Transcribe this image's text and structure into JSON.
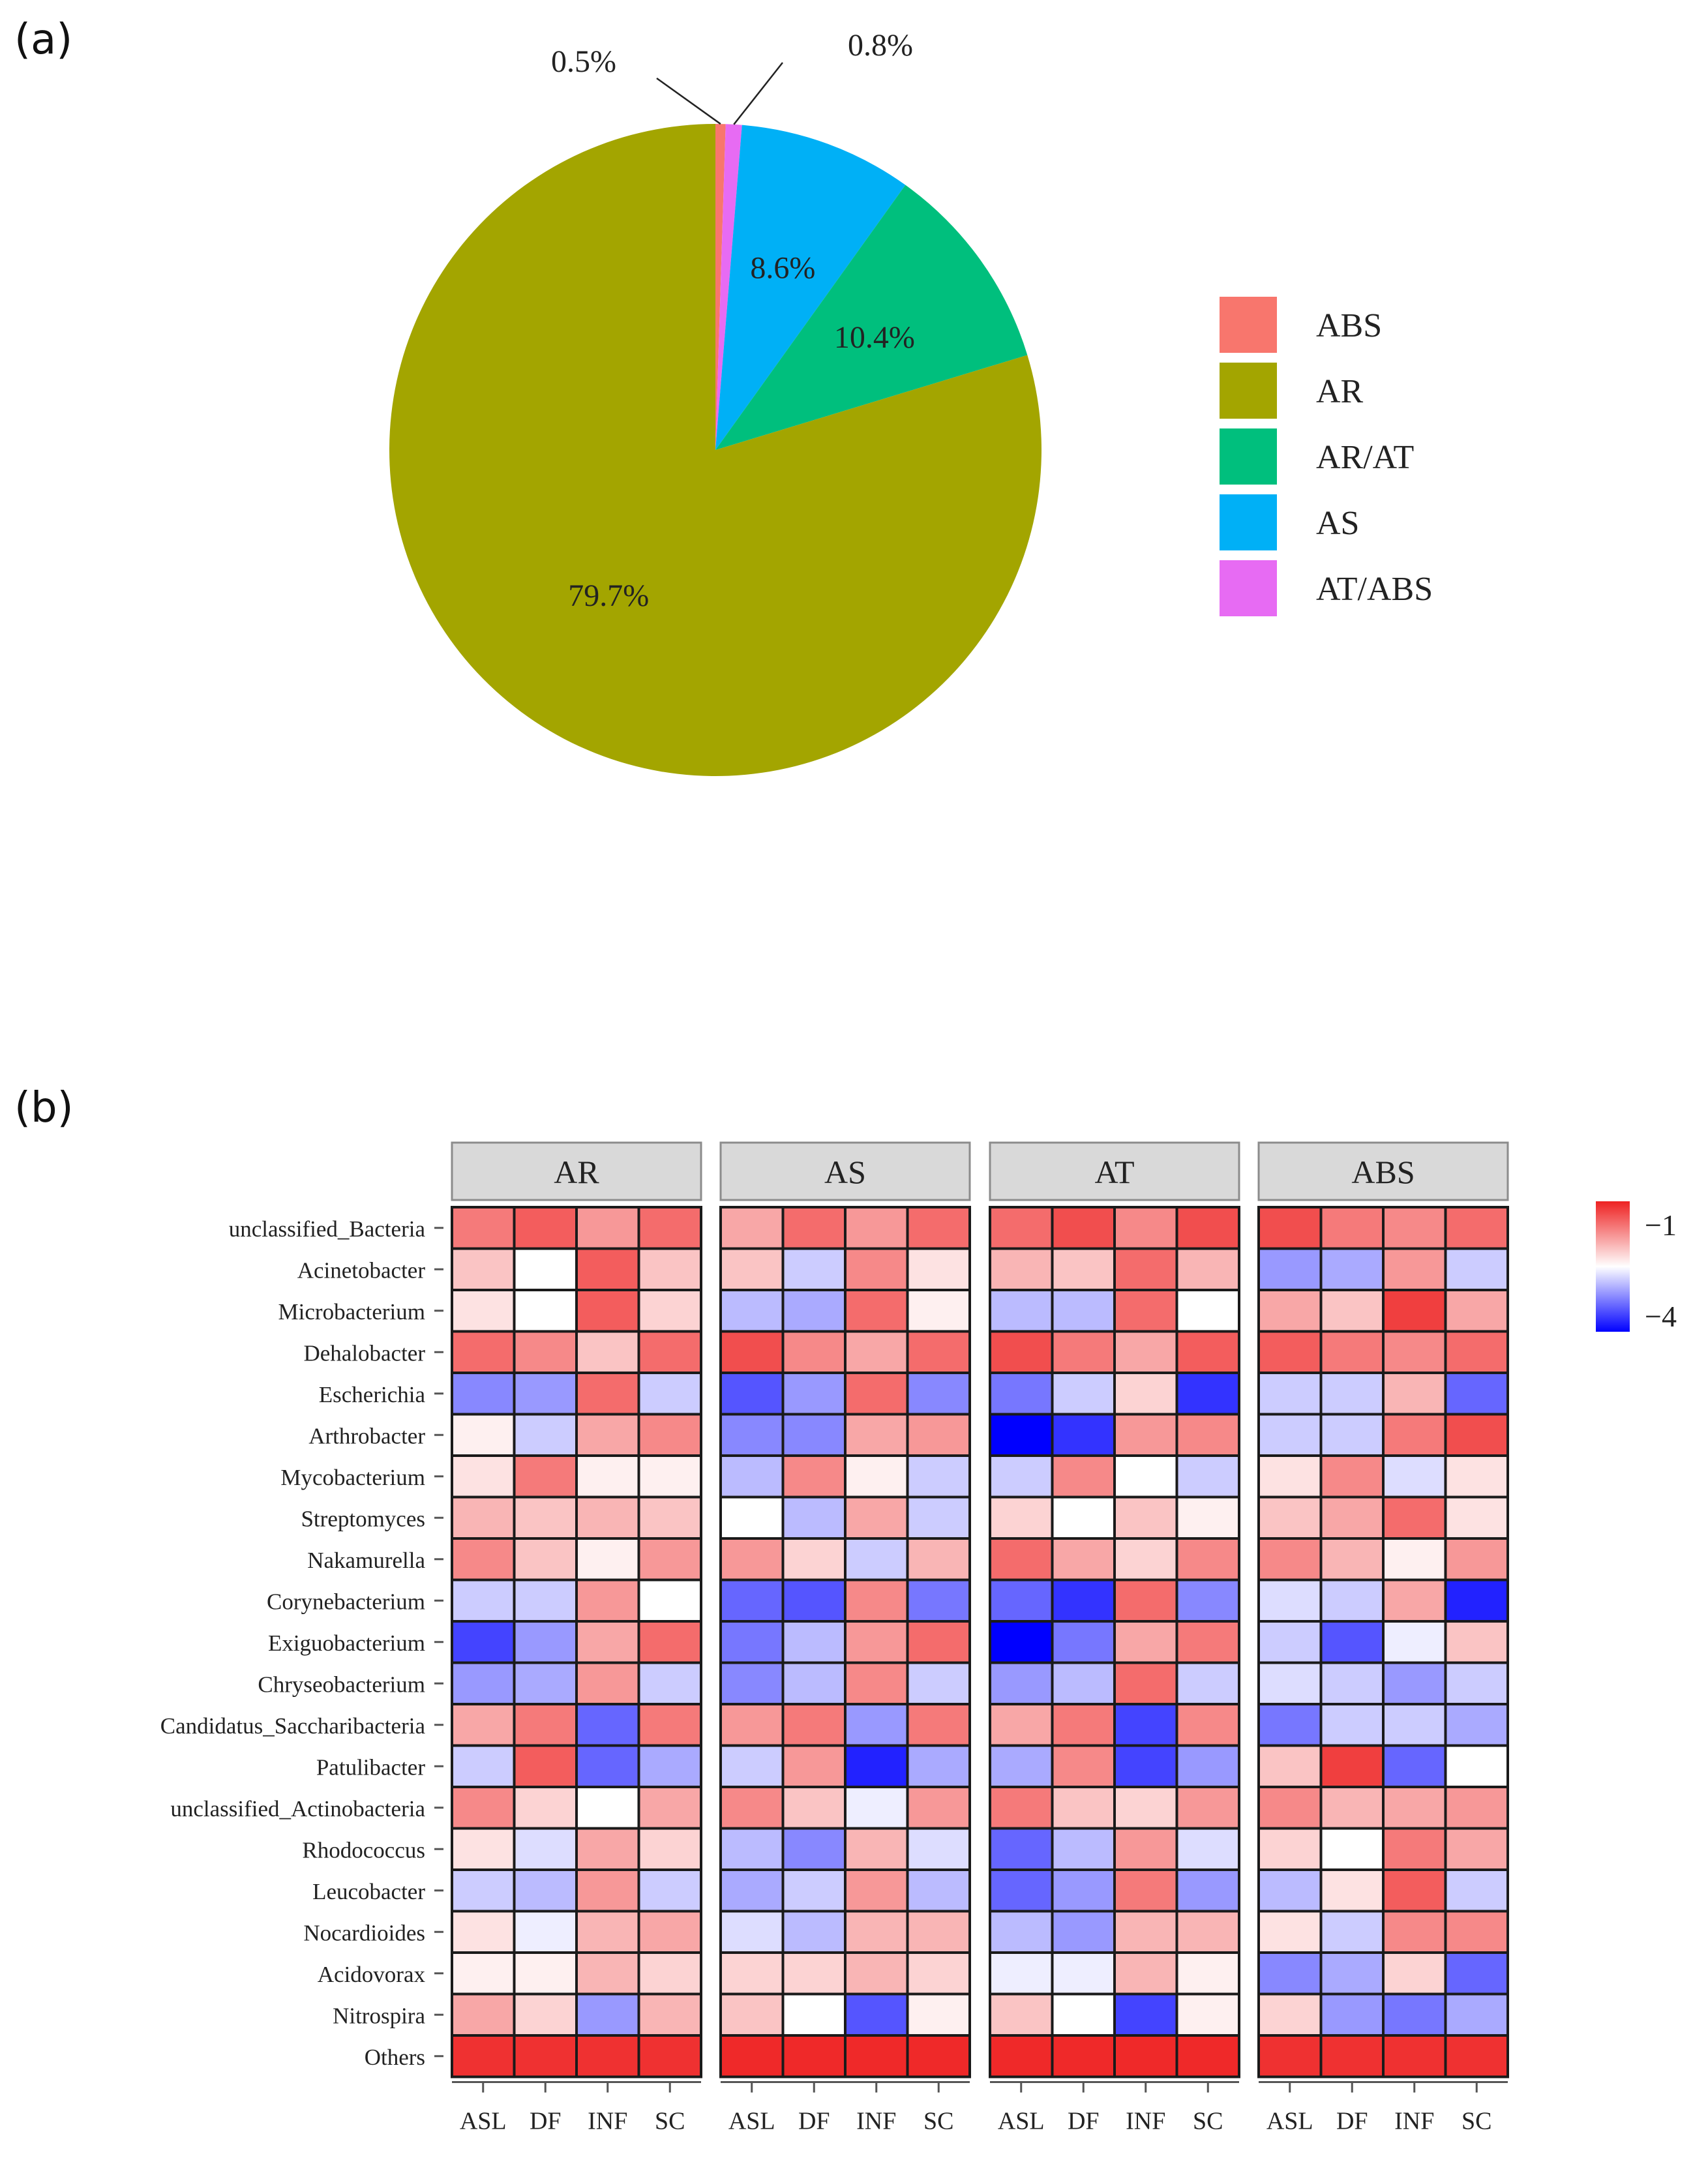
{
  "panel_a": {
    "label": "(a)"
  },
  "panel_b": {
    "label": "(b)"
  },
  "chart_data": [
    {
      "type": "pie",
      "panel": "(a)",
      "slices": [
        {
          "name": "ABS",
          "value": 0.5,
          "label": "0.5%",
          "color": "#F8766D"
        },
        {
          "name": "AT/ABS",
          "value": 0.8,
          "label": "0.8%",
          "color": "#E76BF3"
        },
        {
          "name": "AS",
          "value": 8.6,
          "label": "8.6%",
          "color": "#00B0F6"
        },
        {
          "name": "AR/AT",
          "value": 10.4,
          "label": "10.4%",
          "color": "#00BF7D"
        },
        {
          "name": "AR",
          "value": 79.7,
          "label": "79.7%",
          "color": "#A3A500"
        }
      ],
      "legend": [
        {
          "name": "ABS",
          "color": "#F8766D"
        },
        {
          "name": "AR",
          "color": "#A3A500"
        },
        {
          "name": "AR/AT",
          "color": "#00BF7D"
        },
        {
          "name": "AS",
          "color": "#00B0F6"
        },
        {
          "name": "AT/ABS",
          "color": "#E76BF3"
        }
      ],
      "legend_position": "right"
    },
    {
      "type": "heatmap",
      "panel": "(b)",
      "facets": [
        "AR",
        "AS",
        "AT",
        "ABS"
      ],
      "columns": [
        "ASL",
        "DF",
        "INF",
        "SC"
      ],
      "rows": [
        "unclassified_Bacteria",
        "Acinetobacter",
        "Microbacterium",
        "Dehalobacter",
        "Escherichia",
        "Arthrobacter",
        "Mycobacterium",
        "Streptomyces",
        "Nakamurella",
        "Corynebacterium",
        "Exiguobacterium",
        "Chryseobacterium",
        "Candidatus_Saccharibacteria",
        "Patulibacter",
        "unclassified_Actinobacteria",
        "Rhodococcus",
        "Leucobacter",
        "Nocardioides",
        "Acidovorax",
        "Nitrospira",
        "Others"
      ],
      "colorbar": {
        "min": -4,
        "max": -1,
        "low_color": "#0000FF",
        "mid_color": "#FFFFFF",
        "high_color": "#EE2222",
        "tick_labels": [
          "−1",
          "−4"
        ]
      },
      "values": {
        "AR": [
          [
            -1.6,
            -1.4,
            -1.8,
            -1.5
          ],
          [
            -2.1,
            -2.5,
            -1.4,
            -2.1
          ],
          [
            -2.3,
            -2.5,
            -1.4,
            -2.2
          ],
          [
            -1.5,
            -1.7,
            -2.1,
            -1.5
          ],
          [
            -3.2,
            -3.1,
            -1.5,
            -2.8
          ],
          [
            -2.4,
            -2.8,
            -1.9,
            -1.7
          ],
          [
            -2.3,
            -1.6,
            -2.4,
            -2.4
          ],
          [
            -2.0,
            -2.1,
            -2.0,
            -2.1
          ],
          [
            -1.7,
            -2.1,
            -2.4,
            -1.8
          ],
          [
            -2.8,
            -2.8,
            -1.8,
            -2.5
          ],
          [
            -3.6,
            -3.1,
            -1.9,
            -1.5
          ],
          [
            -3.1,
            -3.0,
            -1.8,
            -2.8
          ],
          [
            -1.9,
            -1.6,
            -3.4,
            -1.6
          ],
          [
            -2.8,
            -1.4,
            -3.4,
            -3.0
          ],
          [
            -1.7,
            -2.2,
            -2.5,
            -1.9
          ],
          [
            -2.3,
            -2.7,
            -1.9,
            -2.2
          ],
          [
            -2.8,
            -2.9,
            -1.8,
            -2.8
          ],
          [
            -2.3,
            -2.6,
            -2.0,
            -1.9
          ],
          [
            -2.4,
            -2.4,
            -2.0,
            -2.2
          ],
          [
            -1.9,
            -2.2,
            -3.1,
            -2.0
          ],
          [
            -1.1,
            -1.1,
            -1.1,
            -1.1
          ]
        ],
        "AS": [
          [
            -1.9,
            -1.5,
            -1.8,
            -1.5
          ],
          [
            -2.1,
            -2.8,
            -1.7,
            -2.3
          ],
          [
            -2.9,
            -3.0,
            -1.5,
            -2.4
          ],
          [
            -1.3,
            -1.7,
            -1.9,
            -1.5
          ],
          [
            -3.5,
            -3.1,
            -1.5,
            -3.2
          ],
          [
            -3.2,
            -3.2,
            -1.9,
            -1.8
          ],
          [
            -2.9,
            -1.7,
            -2.4,
            -2.8
          ],
          [
            -2.5,
            -2.9,
            -1.9,
            -2.8
          ],
          [
            -1.8,
            -2.2,
            -2.8,
            -2.0
          ],
          [
            -3.4,
            -3.5,
            -1.7,
            -3.3
          ],
          [
            -3.3,
            -2.9,
            -1.8,
            -1.5
          ],
          [
            -3.2,
            -2.9,
            -1.7,
            -2.8
          ],
          [
            -1.8,
            -1.6,
            -3.1,
            -1.6
          ],
          [
            -2.8,
            -1.8,
            -3.8,
            -3.0
          ],
          [
            -1.7,
            -2.1,
            -2.6,
            -1.8
          ],
          [
            -2.9,
            -3.2,
            -2.0,
            -2.7
          ],
          [
            -3.0,
            -2.8,
            -1.8,
            -2.9
          ],
          [
            -2.7,
            -2.9,
            -2.0,
            -2.0
          ],
          [
            -2.2,
            -2.2,
            -2.0,
            -2.2
          ],
          [
            -2.1,
            -2.5,
            -3.5,
            -2.4
          ],
          [
            -1.05,
            -1.05,
            -1.05,
            -1.05
          ]
        ],
        "AT": [
          [
            -1.5,
            -1.3,
            -1.7,
            -1.3
          ],
          [
            -2.0,
            -2.1,
            -1.5,
            -2.0
          ],
          [
            -2.9,
            -2.9,
            -1.5,
            -2.5
          ],
          [
            -1.3,
            -1.6,
            -1.9,
            -1.4
          ],
          [
            -3.3,
            -2.8,
            -2.2,
            -3.7
          ],
          [
            -4.0,
            -3.7,
            -1.8,
            -1.7
          ],
          [
            -2.8,
            -1.7,
            -2.5,
            -2.8
          ],
          [
            -2.2,
            -2.5,
            -2.1,
            -2.4
          ],
          [
            -1.5,
            -1.9,
            -2.2,
            -1.7
          ],
          [
            -3.4,
            -3.7,
            -1.5,
            -3.2
          ],
          [
            -4.0,
            -3.3,
            -1.9,
            -1.6
          ],
          [
            -3.1,
            -2.9,
            -1.5,
            -2.8
          ],
          [
            -1.9,
            -1.6,
            -3.6,
            -1.7
          ],
          [
            -3.0,
            -1.7,
            -3.6,
            -3.1
          ],
          [
            -1.6,
            -2.1,
            -2.2,
            -1.8
          ],
          [
            -3.4,
            -2.9,
            -1.8,
            -2.7
          ],
          [
            -3.4,
            -3.1,
            -1.6,
            -3.1
          ],
          [
            -2.9,
            -3.1,
            -2.0,
            -2.0
          ],
          [
            -2.6,
            -2.6,
            -2.0,
            -2.4
          ],
          [
            -2.1,
            -2.5,
            -3.6,
            -2.4
          ],
          [
            -1.05,
            -1.05,
            -1.05,
            -1.05
          ]
        ],
        "ABS": [
          [
            -1.3,
            -1.6,
            -1.7,
            -1.5
          ],
          [
            -3.1,
            -3.0,
            -1.8,
            -2.8
          ],
          [
            -1.9,
            -2.1,
            -1.2,
            -1.9
          ],
          [
            -1.4,
            -1.6,
            -1.7,
            -1.5
          ],
          [
            -2.8,
            -2.8,
            -2.0,
            -3.4
          ],
          [
            -2.8,
            -2.8,
            -1.6,
            -1.3
          ],
          [
            -2.3,
            -1.7,
            -2.7,
            -2.3
          ],
          [
            -2.1,
            -1.9,
            -1.5,
            -2.3
          ],
          [
            -1.7,
            -2.0,
            -2.4,
            -1.8
          ],
          [
            -2.7,
            -2.8,
            -1.9,
            -3.8
          ],
          [
            -2.8,
            -3.5,
            -2.6,
            -2.1
          ],
          [
            -2.7,
            -2.8,
            -3.1,
            -2.8
          ],
          [
            -3.3,
            -2.8,
            -2.8,
            -3.0
          ],
          [
            -2.1,
            -1.2,
            -3.4,
            -2.5
          ],
          [
            -1.7,
            -2.0,
            -1.9,
            -1.8
          ],
          [
            -2.2,
            -2.5,
            -1.6,
            -1.9
          ],
          [
            -2.9,
            -2.3,
            -1.4,
            -2.8
          ],
          [
            -2.3,
            -2.8,
            -1.7,
            -1.7
          ],
          [
            -3.2,
            -3.0,
            -2.2,
            -3.4
          ],
          [
            -2.2,
            -3.1,
            -3.3,
            -3.0
          ],
          [
            -1.1,
            -1.1,
            -1.1,
            -1.1
          ]
        ]
      }
    }
  ]
}
